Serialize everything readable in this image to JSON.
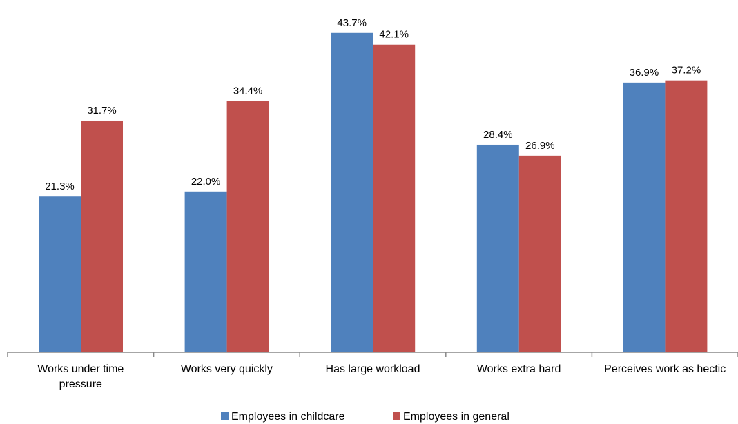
{
  "chart_data": {
    "type": "bar",
    "categories": [
      [
        "Works under time",
        "pressure"
      ],
      [
        "Works very quickly"
      ],
      [
        "Has large workload"
      ],
      [
        "Works extra hard"
      ],
      [
        "Perceives work as hectic"
      ]
    ],
    "series": [
      {
        "name": "Employees in childcare",
        "color": "#4F81BD",
        "values": [
          21.3,
          22.0,
          43.7,
          28.4,
          36.9
        ]
      },
      {
        "name": "Employees in general",
        "color": "#C0504D",
        "values": [
          31.7,
          34.4,
          42.1,
          26.9,
          37.2
        ]
      }
    ],
    "value_suffix": "%",
    "ylim": [
      0,
      45
    ],
    "grid": false,
    "legend_position": "bottom",
    "title": "",
    "xlabel": "",
    "ylabel": ""
  }
}
